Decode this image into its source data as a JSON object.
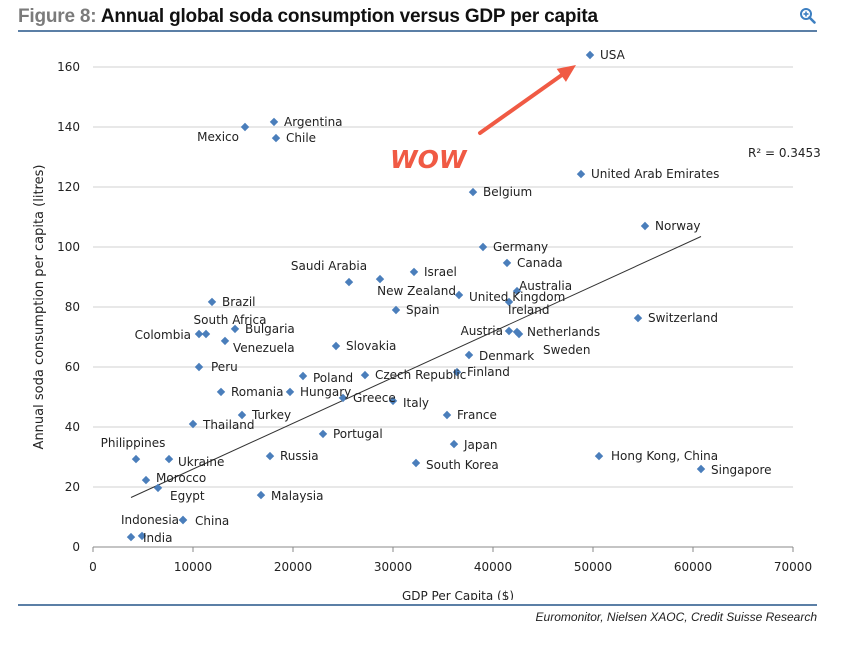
{
  "header": {
    "prefix": "Figure 8:",
    "title": "Annual global soda consumption versus GDP per capita",
    "zoom_icon": "magnifier-plus-icon"
  },
  "footer": {
    "source": "Euromonitor, Nielsen XAOC, Credit Suisse Research"
  },
  "colors": {
    "marker": "#4a7ebb",
    "annotation": "#f05a44",
    "rule": "#5b7fa6",
    "grid": "#d9d9d9"
  },
  "chart_data": {
    "type": "scatter",
    "title": "Annual global soda consumption versus GDP per capita",
    "xlabel": "GDP Per Capita ($)",
    "ylabel": "Annual soda consumption per capita (litres)",
    "xlim": [
      0,
      70000
    ],
    "ylim": [
      0,
      170
    ],
    "xticks": [
      0,
      10000,
      20000,
      30000,
      40000,
      50000,
      60000,
      70000
    ],
    "yticks": [
      0,
      20,
      40,
      60,
      80,
      100,
      120,
      140,
      160
    ],
    "grid": "horizontal",
    "legend": "none",
    "trendline": {
      "type": "linear",
      "x": [
        3800,
        60800
      ],
      "y": [
        16.5,
        103.5
      ],
      "r_squared_label": "R² = 0.3453"
    },
    "annotation": {
      "text": "WOW",
      "arrow_target": "USA"
    },
    "points": [
      {
        "label": "USA",
        "x": 49700,
        "y": 164
      },
      {
        "label": "Argentina",
        "x": 18100,
        "y": 141.7
      },
      {
        "label": "Mexico",
        "x": 15200,
        "y": 140
      },
      {
        "label": "Chile",
        "x": 18300,
        "y": 136.3
      },
      {
        "label": "United Arab Emirates",
        "x": 48800,
        "y": 124.3
      },
      {
        "label": "Belgium",
        "x": 38000,
        "y": 118.3
      },
      {
        "label": "Norway",
        "x": 55200,
        "y": 107
      },
      {
        "label": "Germany",
        "x": 39000,
        "y": 100
      },
      {
        "label": "Canada",
        "x": 41400,
        "y": 94.7
      },
      {
        "label": "Israel",
        "x": 32100,
        "y": 91.7
      },
      {
        "label": "New Zealand",
        "x": 28700,
        "y": 89.3
      },
      {
        "label": "Saudi Arabia",
        "x": 25600,
        "y": 88.3
      },
      {
        "label": "Australia",
        "x": 42400,
        "y": 85.3
      },
      {
        "label": "United Kingdom",
        "x": 36600,
        "y": 84
      },
      {
        "label": "Ireland",
        "x": 41600,
        "y": 81.7
      },
      {
        "label": "Brazil",
        "x": 11900,
        "y": 81.7
      },
      {
        "label": "Spain",
        "x": 30300,
        "y": 79
      },
      {
        "label": "Switzerland",
        "x": 54500,
        "y": 76.3
      },
      {
        "label": "Bulgaria",
        "x": 14200,
        "y": 72.7
      },
      {
        "label": "Austria",
        "x": 41600,
        "y": 72
      },
      {
        "label": "Netherlands",
        "x": 42400,
        "y": 71.7
      },
      {
        "label": "Sweden",
        "x": 42600,
        "y": 71
      },
      {
        "label": "South Africa",
        "x": 11300,
        "y": 71
      },
      {
        "label": "Colombia",
        "x": 10600,
        "y": 71
      },
      {
        "label": "Venezuela",
        "x": 13200,
        "y": 68.7
      },
      {
        "label": "Slovakia",
        "x": 24300,
        "y": 67
      },
      {
        "label": "Denmark",
        "x": 37600,
        "y": 64
      },
      {
        "label": "Peru",
        "x": 10600,
        "y": 60
      },
      {
        "label": "Finland",
        "x": 36400,
        "y": 58.3
      },
      {
        "label": "Czech Republic",
        "x": 27200,
        "y": 57.3
      },
      {
        "label": "Poland",
        "x": 21000,
        "y": 57
      },
      {
        "label": "Romania",
        "x": 12800,
        "y": 51.7
      },
      {
        "label": "Hungary",
        "x": 19700,
        "y": 51.7
      },
      {
        "label": "Greece",
        "x": 25000,
        "y": 49.7
      },
      {
        "label": "Italy",
        "x": 30000,
        "y": 48.7
      },
      {
        "label": "Turkey",
        "x": 14900,
        "y": 44
      },
      {
        "label": "France",
        "x": 35400,
        "y": 44
      },
      {
        "label": "Thailand",
        "x": 10000,
        "y": 41
      },
      {
        "label": "Portugal",
        "x": 23000,
        "y": 37.7
      },
      {
        "label": "Japan",
        "x": 36100,
        "y": 34.3
      },
      {
        "label": "Russia",
        "x": 17700,
        "y": 30.3
      },
      {
        "label": "Hong Kong, China",
        "x": 50600,
        "y": 30.3
      },
      {
        "label": "Philippines",
        "x": 4300,
        "y": 29.3
      },
      {
        "label": "Ukraine",
        "x": 7600,
        "y": 29.3
      },
      {
        "label": "South Korea",
        "x": 32300,
        "y": 28
      },
      {
        "label": "Singapore",
        "x": 60800,
        "y": 26
      },
      {
        "label": "Morocco",
        "x": 5300,
        "y": 22.3
      },
      {
        "label": "Egypt",
        "x": 6500,
        "y": 19.7
      },
      {
        "label": "Malaysia",
        "x": 16800,
        "y": 17.3
      },
      {
        "label": "China",
        "x": 9000,
        "y": 9
      },
      {
        "label": "Indonesia",
        "x": 9000,
        "y": 9
      },
      {
        "label": "India",
        "x": 4900,
        "y": 3.7
      },
      {
        "label": "",
        "x": 3800,
        "y": 3.3
      }
    ]
  }
}
